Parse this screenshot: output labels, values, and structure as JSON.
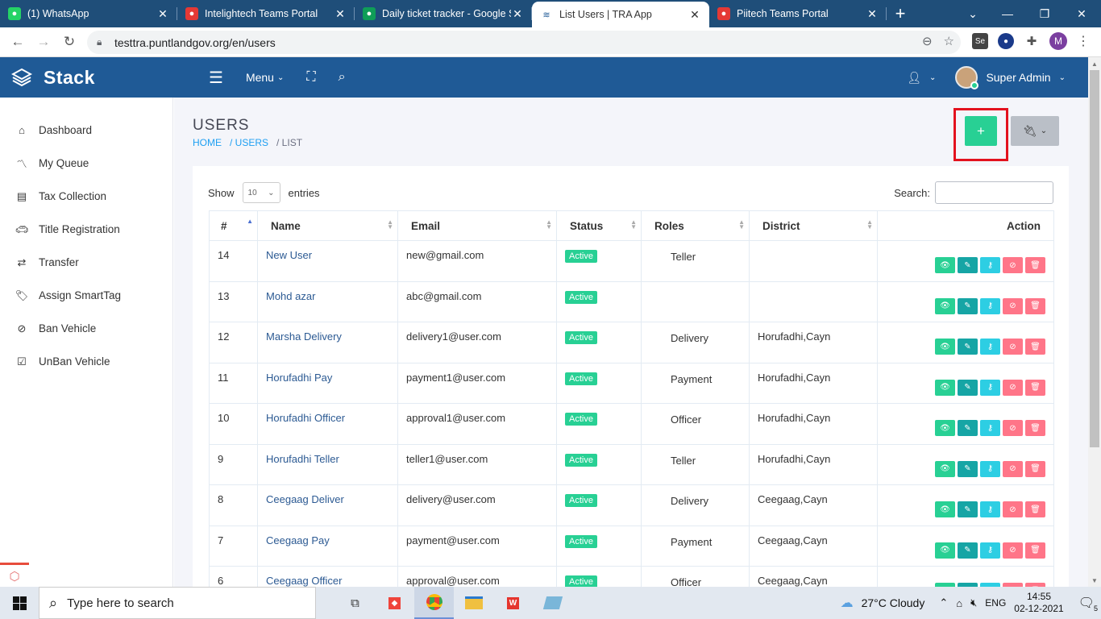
{
  "browser": {
    "tabs": [
      {
        "title": "(1) WhatsApp",
        "icon": "whatsapp-icon",
        "color": "#25d366",
        "active": false
      },
      {
        "title": "Intelightech Teams Portal",
        "icon": "teams-portal-icon",
        "color": "#e53935",
        "active": false
      },
      {
        "title": "Daily ticket tracker - Google S",
        "icon": "google-sheets-icon",
        "color": "#0f9d58",
        "active": false
      },
      {
        "title": "List Users | TRA App",
        "icon": "stack-layers-icon",
        "color": "#1f5a96",
        "active": true
      },
      {
        "title": "Piitech Teams Portal",
        "icon": "teams-portal-icon",
        "color": "#e53935",
        "active": false
      }
    ],
    "url": "testtra.puntlandgov.org/en/users",
    "profile_initial": "M"
  },
  "app": {
    "brand": "Stack",
    "menu_label": "Menu",
    "user_name": "Super Admin",
    "header_color": "#1f5a96"
  },
  "sidebar": {
    "items": [
      {
        "label": "Dashboard",
        "icon": "home-icon"
      },
      {
        "label": "My Queue",
        "icon": "trend-line-icon"
      },
      {
        "label": "Tax Collection",
        "icon": "list-icon"
      },
      {
        "label": "Title Registration",
        "icon": "car-icon"
      },
      {
        "label": "Transfer",
        "icon": "transfer-arrows-icon"
      },
      {
        "label": "Assign SmartTag",
        "icon": "tags-icon"
      },
      {
        "label": "Ban Vehicle",
        "icon": "ban-icon"
      },
      {
        "label": "UnBan Vehicle",
        "icon": "check-square-icon"
      }
    ]
  },
  "page": {
    "title": "USERS",
    "breadcrumb": [
      "HOME",
      "/ USERS",
      "/ LIST"
    ],
    "add_label": "+"
  },
  "table": {
    "show_label": "Show",
    "entries_value": "10",
    "entries_label": "entries",
    "search_label": "Search:",
    "columns": [
      "#",
      "Name",
      "Email",
      "Status",
      "Roles",
      "District",
      "Action"
    ],
    "rows": [
      {
        "id": "14",
        "name": "New User",
        "email": "new@gmail.com",
        "status": "Active",
        "role": "Teller",
        "district": ""
      },
      {
        "id": "13",
        "name": "Mohd azar",
        "email": "abc@gmail.com",
        "status": "Active",
        "role": "",
        "district": ""
      },
      {
        "id": "12",
        "name": "Marsha Delivery",
        "email": "delivery1@user.com",
        "status": "Active",
        "role": "Delivery",
        "district": "Horufadhi,Cayn"
      },
      {
        "id": "11",
        "name": "Horufadhi Pay",
        "email": "payment1@user.com",
        "status": "Active",
        "role": "Payment",
        "district": "Horufadhi,Cayn"
      },
      {
        "id": "10",
        "name": "Horufadhi Officer",
        "email": "approval1@user.com",
        "status": "Active",
        "role": "Officer",
        "district": "Horufadhi,Cayn"
      },
      {
        "id": "9",
        "name": "Horufadhi Teller",
        "email": "teller1@user.com",
        "status": "Active",
        "role": "Teller",
        "district": "Horufadhi,Cayn"
      },
      {
        "id": "8",
        "name": "Ceegaag Deliver",
        "email": "delivery@user.com",
        "status": "Active",
        "role": "Delivery",
        "district": "Ceegaag,Cayn"
      },
      {
        "id": "7",
        "name": "Ceegaag Pay",
        "email": "payment@user.com",
        "status": "Active",
        "role": "Payment",
        "district": "Ceegaag,Cayn"
      },
      {
        "id": "6",
        "name": "Ceegaag Officer",
        "email": "approval@user.com",
        "status": "Active",
        "role": "Officer",
        "district": "Ceegaag,Cayn"
      }
    ]
  },
  "taskbar": {
    "search_placeholder": "Type here to search",
    "weather": "27°C  Cloudy",
    "language": "ENG",
    "time": "14:55",
    "date": "02-12-2021",
    "notifications": "5"
  }
}
